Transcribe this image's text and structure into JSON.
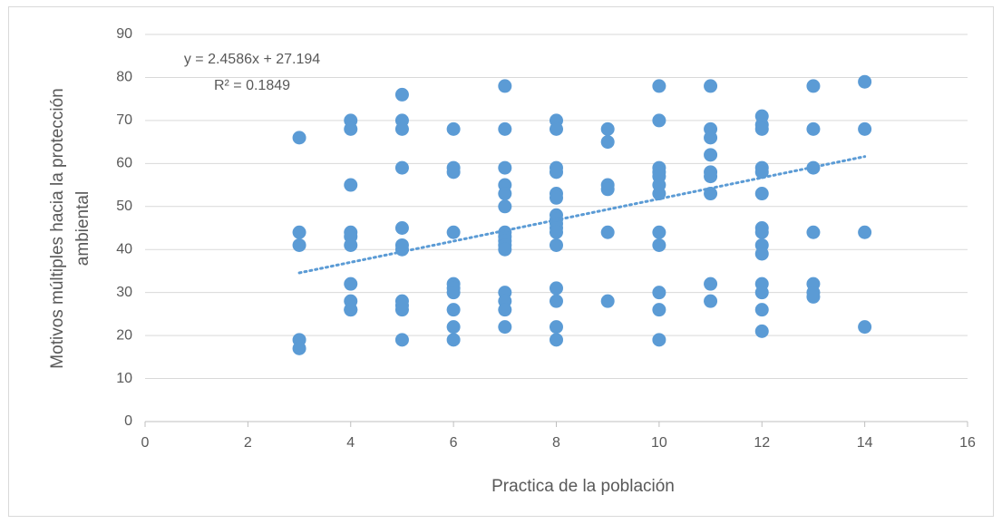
{
  "chart_data": {
    "type": "scatter",
    "xlabel": "Practica de la población",
    "ylabel": [
      "Motivos múltiples hacia la protección",
      "ambiental"
    ],
    "color": "#5b9bd5",
    "x": [
      3,
      3,
      3,
      3,
      3,
      4,
      4,
      4,
      4,
      4,
      4,
      4,
      4,
      4,
      4,
      5,
      5,
      5,
      5,
      5,
      5,
      5,
      5,
      5,
      5,
      5,
      6,
      6,
      6,
      6,
      6,
      6,
      6,
      6,
      6,
      6,
      7,
      7,
      7,
      7,
      7,
      7,
      7,
      7,
      7,
      7,
      7,
      7,
      7,
      7,
      7,
      8,
      8,
      8,
      8,
      8,
      8,
      8,
      8,
      8,
      8,
      8,
      8,
      8,
      8,
      8,
      8,
      9,
      9,
      9,
      9,
      9,
      9,
      10,
      10,
      10,
      10,
      10,
      10,
      10,
      10,
      10,
      10,
      10,
      10,
      11,
      11,
      11,
      11,
      11,
      11,
      11,
      11,
      11,
      12,
      12,
      12,
      12,
      12,
      12,
      12,
      12,
      12,
      12,
      12,
      12,
      12,
      12,
      13,
      13,
      13,
      13,
      13,
      13,
      13,
      14,
      14,
      14,
      14
    ],
    "values": [
      66,
      44,
      41,
      19,
      17,
      70,
      68,
      55,
      44,
      43,
      41,
      32,
      28,
      26,
      26,
      76,
      70,
      68,
      59,
      45,
      41,
      40,
      28,
      27,
      26,
      19,
      68,
      59,
      58,
      44,
      32,
      31,
      30,
      26,
      22,
      19,
      78,
      68,
      59,
      55,
      53,
      50,
      44,
      43,
      42,
      41,
      40,
      30,
      28,
      26,
      22,
      70,
      68,
      59,
      58,
      53,
      52,
      48,
      47,
      46,
      45,
      44,
      41,
      31,
      28,
      22,
      19,
      68,
      65,
      55,
      54,
      44,
      28,
      78,
      70,
      59,
      58,
      57,
      55,
      53,
      44,
      41,
      30,
      26,
      19,
      78,
      68,
      66,
      62,
      58,
      57,
      53,
      32,
      28,
      71,
      69,
      68,
      59,
      58,
      53,
      45,
      44,
      41,
      39,
      32,
      30,
      26,
      21,
      78,
      68,
      59,
      44,
      32,
      30,
      29,
      79,
      68,
      44,
      22
    ],
    "trendline": {
      "equation": "y = 2.4586x + 27.194",
      "r_squared": "R² = 0.1849",
      "slope": 2.4586,
      "intercept": 27.194,
      "xrange": [
        3,
        14
      ]
    },
    "xlim": [
      0,
      16
    ],
    "xticks": [
      0,
      2,
      4,
      6,
      8,
      10,
      12,
      14,
      16
    ],
    "ylim": [
      0,
      90
    ],
    "yticks": [
      0,
      10,
      20,
      30,
      40,
      50,
      60,
      70,
      80,
      90
    ],
    "grid": true
  }
}
